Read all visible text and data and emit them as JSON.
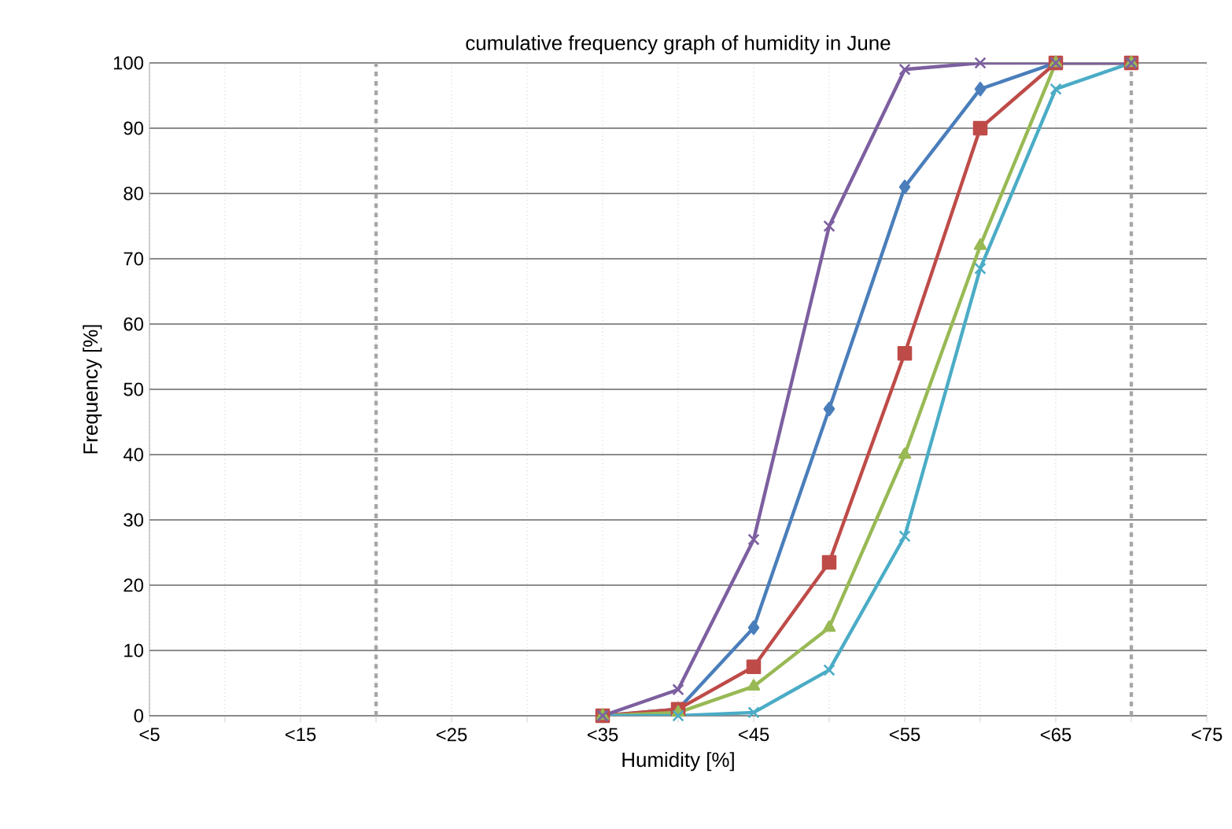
{
  "chart_data": {
    "type": "line",
    "title": "cumulative frequency graph of humidity in  June",
    "xlabel": "Humidity [%]",
    "ylabel": "Frequency  [%]",
    "categories": [
      "<5",
      null,
      "<15",
      null,
      "<25",
      null,
      "<35",
      null,
      "<45",
      null,
      "<55",
      null,
      "<65",
      null,
      "<75"
    ],
    "ylim": [
      0,
      100
    ],
    "yticks": [
      0,
      10,
      20,
      30,
      40,
      50,
      60,
      70,
      80,
      90,
      100
    ],
    "grid": true,
    "line_style": "solid",
    "series": [
      {
        "color": "#4a7ebb",
        "marker": "diamond",
        "values": [
          null,
          null,
          null,
          null,
          null,
          null,
          0,
          1,
          13.5,
          47,
          81,
          96,
          100,
          100,
          null
        ]
      },
      {
        "color": "#be4b48",
        "marker": "square",
        "values": [
          null,
          null,
          null,
          null,
          null,
          null,
          0,
          1,
          7.5,
          23.5,
          55.5,
          90,
          100,
          100,
          null
        ]
      },
      {
        "color": "#98b954",
        "marker": "triangle",
        "values": [
          null,
          null,
          null,
          null,
          null,
          null,
          0,
          0.5,
          4.5,
          13.5,
          40,
          72,
          100,
          100,
          null
        ]
      },
      {
        "color": "#4bacc6",
        "marker": "cross",
        "values": [
          null,
          null,
          null,
          null,
          null,
          null,
          0,
          0,
          0.5,
          7,
          27.5,
          68.5,
          96,
          100,
          null
        ]
      },
      {
        "color": "#7d5fa0",
        "marker": "cross",
        "values": [
          null,
          null,
          null,
          null,
          null,
          null,
          0,
          4,
          27,
          75,
          99,
          100,
          100,
          100,
          null
        ]
      }
    ]
  }
}
